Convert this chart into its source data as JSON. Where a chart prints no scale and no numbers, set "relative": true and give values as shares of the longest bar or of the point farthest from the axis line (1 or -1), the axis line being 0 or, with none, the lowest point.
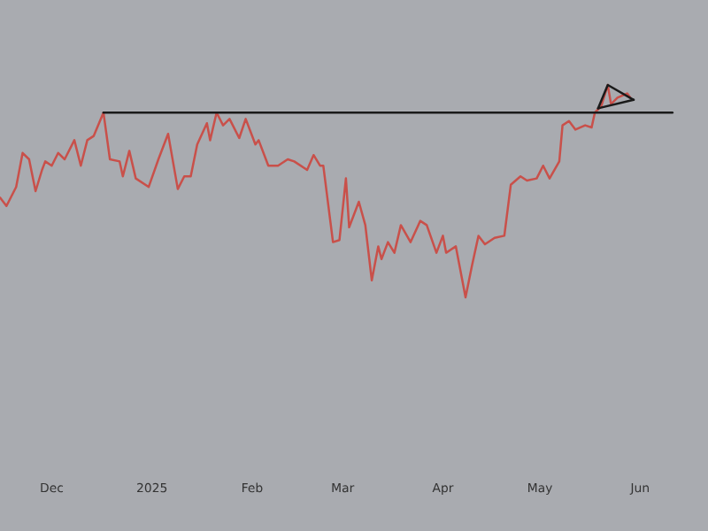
{
  "chart_data": {
    "type": "line",
    "relative": true,
    "grid": false,
    "legend": false,
    "tick_labels": "x",
    "xlim": [
      "2024-11-15",
      "2025-06-22"
    ],
    "xticks": [
      {
        "value": "2024-12-01",
        "label": "Dec"
      },
      {
        "value": "2025-01-01",
        "label": "2025"
      },
      {
        "value": "2025-02-01",
        "label": "Feb"
      },
      {
        "value": "2025-03-01",
        "label": "Mar"
      },
      {
        "value": "2025-04-01",
        "label": "Apr"
      },
      {
        "value": "2025-05-01",
        "label": "May"
      },
      {
        "value": "2025-06-01",
        "label": "Jun"
      }
    ],
    "series": [
      {
        "color": "#c9504a",
        "x": [
          "2024-11-15",
          "2024-11-17",
          "2024-11-20",
          "2024-11-22",
          "2024-11-24",
          "2024-11-26",
          "2024-11-28",
          "2024-11-29",
          "2024-12-01",
          "2024-12-03",
          "2024-12-05",
          "2024-12-08",
          "2024-12-10",
          "2024-12-12",
          "2024-12-14",
          "2024-12-17",
          "2024-12-19",
          "2024-12-22",
          "2024-12-23",
          "2024-12-25",
          "2024-12-27",
          "2024-12-31",
          "2025-01-03",
          "2025-01-06",
          "2025-01-09",
          "2025-01-11",
          "2025-01-13",
          "2025-01-15",
          "2025-01-18",
          "2025-01-19",
          "2025-01-21",
          "2025-01-23",
          "2025-01-25",
          "2025-01-28",
          "2025-01-30",
          "2025-02-02",
          "2025-02-03",
          "2025-02-06",
          "2025-02-09",
          "2025-02-12",
          "2025-02-14",
          "2025-02-18",
          "2025-02-20",
          "2025-02-22",
          "2025-02-23",
          "2025-02-26",
          "2025-02-28",
          "2025-03-02",
          "2025-03-03",
          "2025-03-06",
          "2025-03-08",
          "2025-03-10",
          "2025-03-12",
          "2025-03-13",
          "2025-03-15",
          "2025-03-17",
          "2025-03-19",
          "2025-03-22",
          "2025-03-25",
          "2025-03-27",
          "2025-03-30",
          "2025-04-01",
          "2025-04-02",
          "2025-04-05",
          "2025-04-07",
          "2025-04-08",
          "2025-04-10",
          "2025-04-12",
          "2025-04-14",
          "2025-04-17",
          "2025-04-20",
          "2025-04-22",
          "2025-04-25",
          "2025-04-27",
          "2025-04-30",
          "2025-05-02",
          "2025-05-04",
          "2025-05-07",
          "2025-05-08",
          "2025-05-10",
          "2025-05-12",
          "2025-05-15",
          "2025-05-17",
          "2025-05-18",
          "2025-05-20",
          "2025-05-22",
          "2025-05-23",
          "2025-05-25",
          "2025-05-28",
          "2025-05-29"
        ],
        "values": [
          0.47,
          0.43,
          0.52,
          0.68,
          0.65,
          0.5,
          0.6,
          0.64,
          0.62,
          0.68,
          0.65,
          0.74,
          0.62,
          0.74,
          0.76,
          0.87,
          0.65,
          0.64,
          0.57,
          0.69,
          0.56,
          0.52,
          0.65,
          0.77,
          0.51,
          0.57,
          0.57,
          0.72,
          0.82,
          0.74,
          0.87,
          0.81,
          0.84,
          0.75,
          0.84,
          0.72,
          0.74,
          0.62,
          0.62,
          0.65,
          0.64,
          0.6,
          0.67,
          0.62,
          0.62,
          0.26,
          0.27,
          0.56,
          0.33,
          0.45,
          0.34,
          0.08,
          0.24,
          0.18,
          0.26,
          0.21,
          0.34,
          0.26,
          0.36,
          0.34,
          0.21,
          0.29,
          0.21,
          0.24,
          0.08,
          0,
          0.15,
          0.29,
          0.25,
          0.28,
          0.29,
          0.53,
          0.57,
          0.55,
          0.56,
          0.62,
          0.56,
          0.64,
          0.81,
          0.83,
          0.79,
          0.81,
          0.8,
          0.87,
          0.9,
          1.0,
          0.91,
          0.94,
          0.96,
          0.94
        ]
      },
      {
        "color": "#1a1a1a",
        "x": [
          "2024-12-17",
          "2025-06-11"
        ],
        "values": [
          0.87,
          0.87
        ]
      },
      {
        "color": "#1a1a1a",
        "x": [
          "2025-05-19",
          "2025-05-22",
          "2025-05-30"
        ],
        "values": [
          0.89,
          1.0,
          0.93
        ]
      },
      {
        "color": "#1a1a1a",
        "x": [
          "2025-05-19",
          "2025-05-30"
        ],
        "values": [
          0.89,
          0.93
        ]
      }
    ]
  }
}
